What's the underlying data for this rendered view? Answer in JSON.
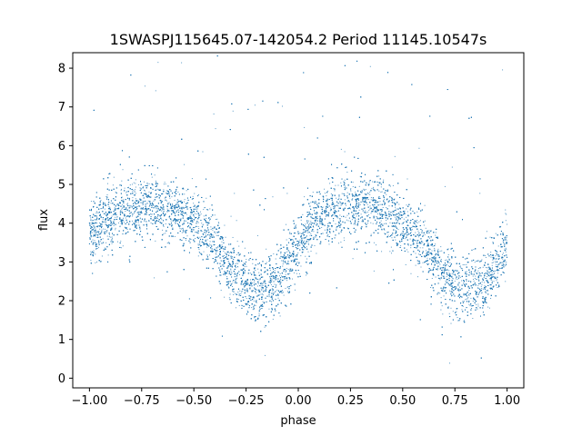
{
  "chart_data": {
    "type": "scatter",
    "title": "1SWASPJ115645.07-142054.2 Period 11145.10547s",
    "xlabel": "phase",
    "ylabel": "flux",
    "xlim": [
      -1.08,
      1.08
    ],
    "ylim": [
      -0.25,
      8.4
    ],
    "x_ticks": [
      -1.0,
      -0.75,
      -0.5,
      -0.25,
      0.0,
      0.25,
      0.5,
      0.75,
      1.0
    ],
    "x_tick_labels": [
      "−1.00",
      "−0.75",
      "−0.50",
      "−0.25",
      "0.00",
      "0.25",
      "0.50",
      "0.75",
      "1.00"
    ],
    "y_ticks": [
      0,
      1,
      2,
      3,
      4,
      5,
      6,
      7,
      8
    ],
    "y_tick_labels": [
      "0",
      "1",
      "2",
      "3",
      "4",
      "5",
      "6",
      "7",
      "8"
    ],
    "grid": false,
    "legend": "none",
    "marker_color": "#1f77b4",
    "series": [
      {
        "x": [
          -1.0,
          -0.95,
          -0.9,
          -0.85,
          -0.8,
          -0.75,
          -0.7,
          -0.65,
          -0.6,
          -0.55,
          -0.5,
          -0.45,
          -0.4,
          -0.35,
          -0.3,
          -0.25,
          -0.2,
          -0.15,
          -0.1,
          -0.05,
          0.0,
          0.05,
          0.1,
          0.15,
          0.2,
          0.25,
          0.3,
          0.35,
          0.4,
          0.45,
          0.5,
          0.55,
          0.6,
          0.65,
          0.7,
          0.75,
          0.8,
          0.85,
          0.9,
          0.95,
          1.0
        ],
        "y": [
          3.7,
          3.95,
          4.1,
          4.25,
          4.35,
          4.45,
          4.5,
          4.45,
          4.35,
          4.2,
          4.0,
          3.75,
          3.45,
          3.05,
          2.65,
          2.4,
          2.3,
          2.3,
          2.5,
          2.9,
          3.45,
          3.8,
          4.05,
          4.25,
          4.35,
          4.45,
          4.5,
          4.45,
          4.35,
          4.2,
          4.0,
          3.75,
          3.45,
          3.05,
          2.65,
          2.4,
          2.3,
          2.3,
          2.5,
          2.9,
          3.45
        ],
        "scatter_width": 0.55
      }
    ]
  }
}
